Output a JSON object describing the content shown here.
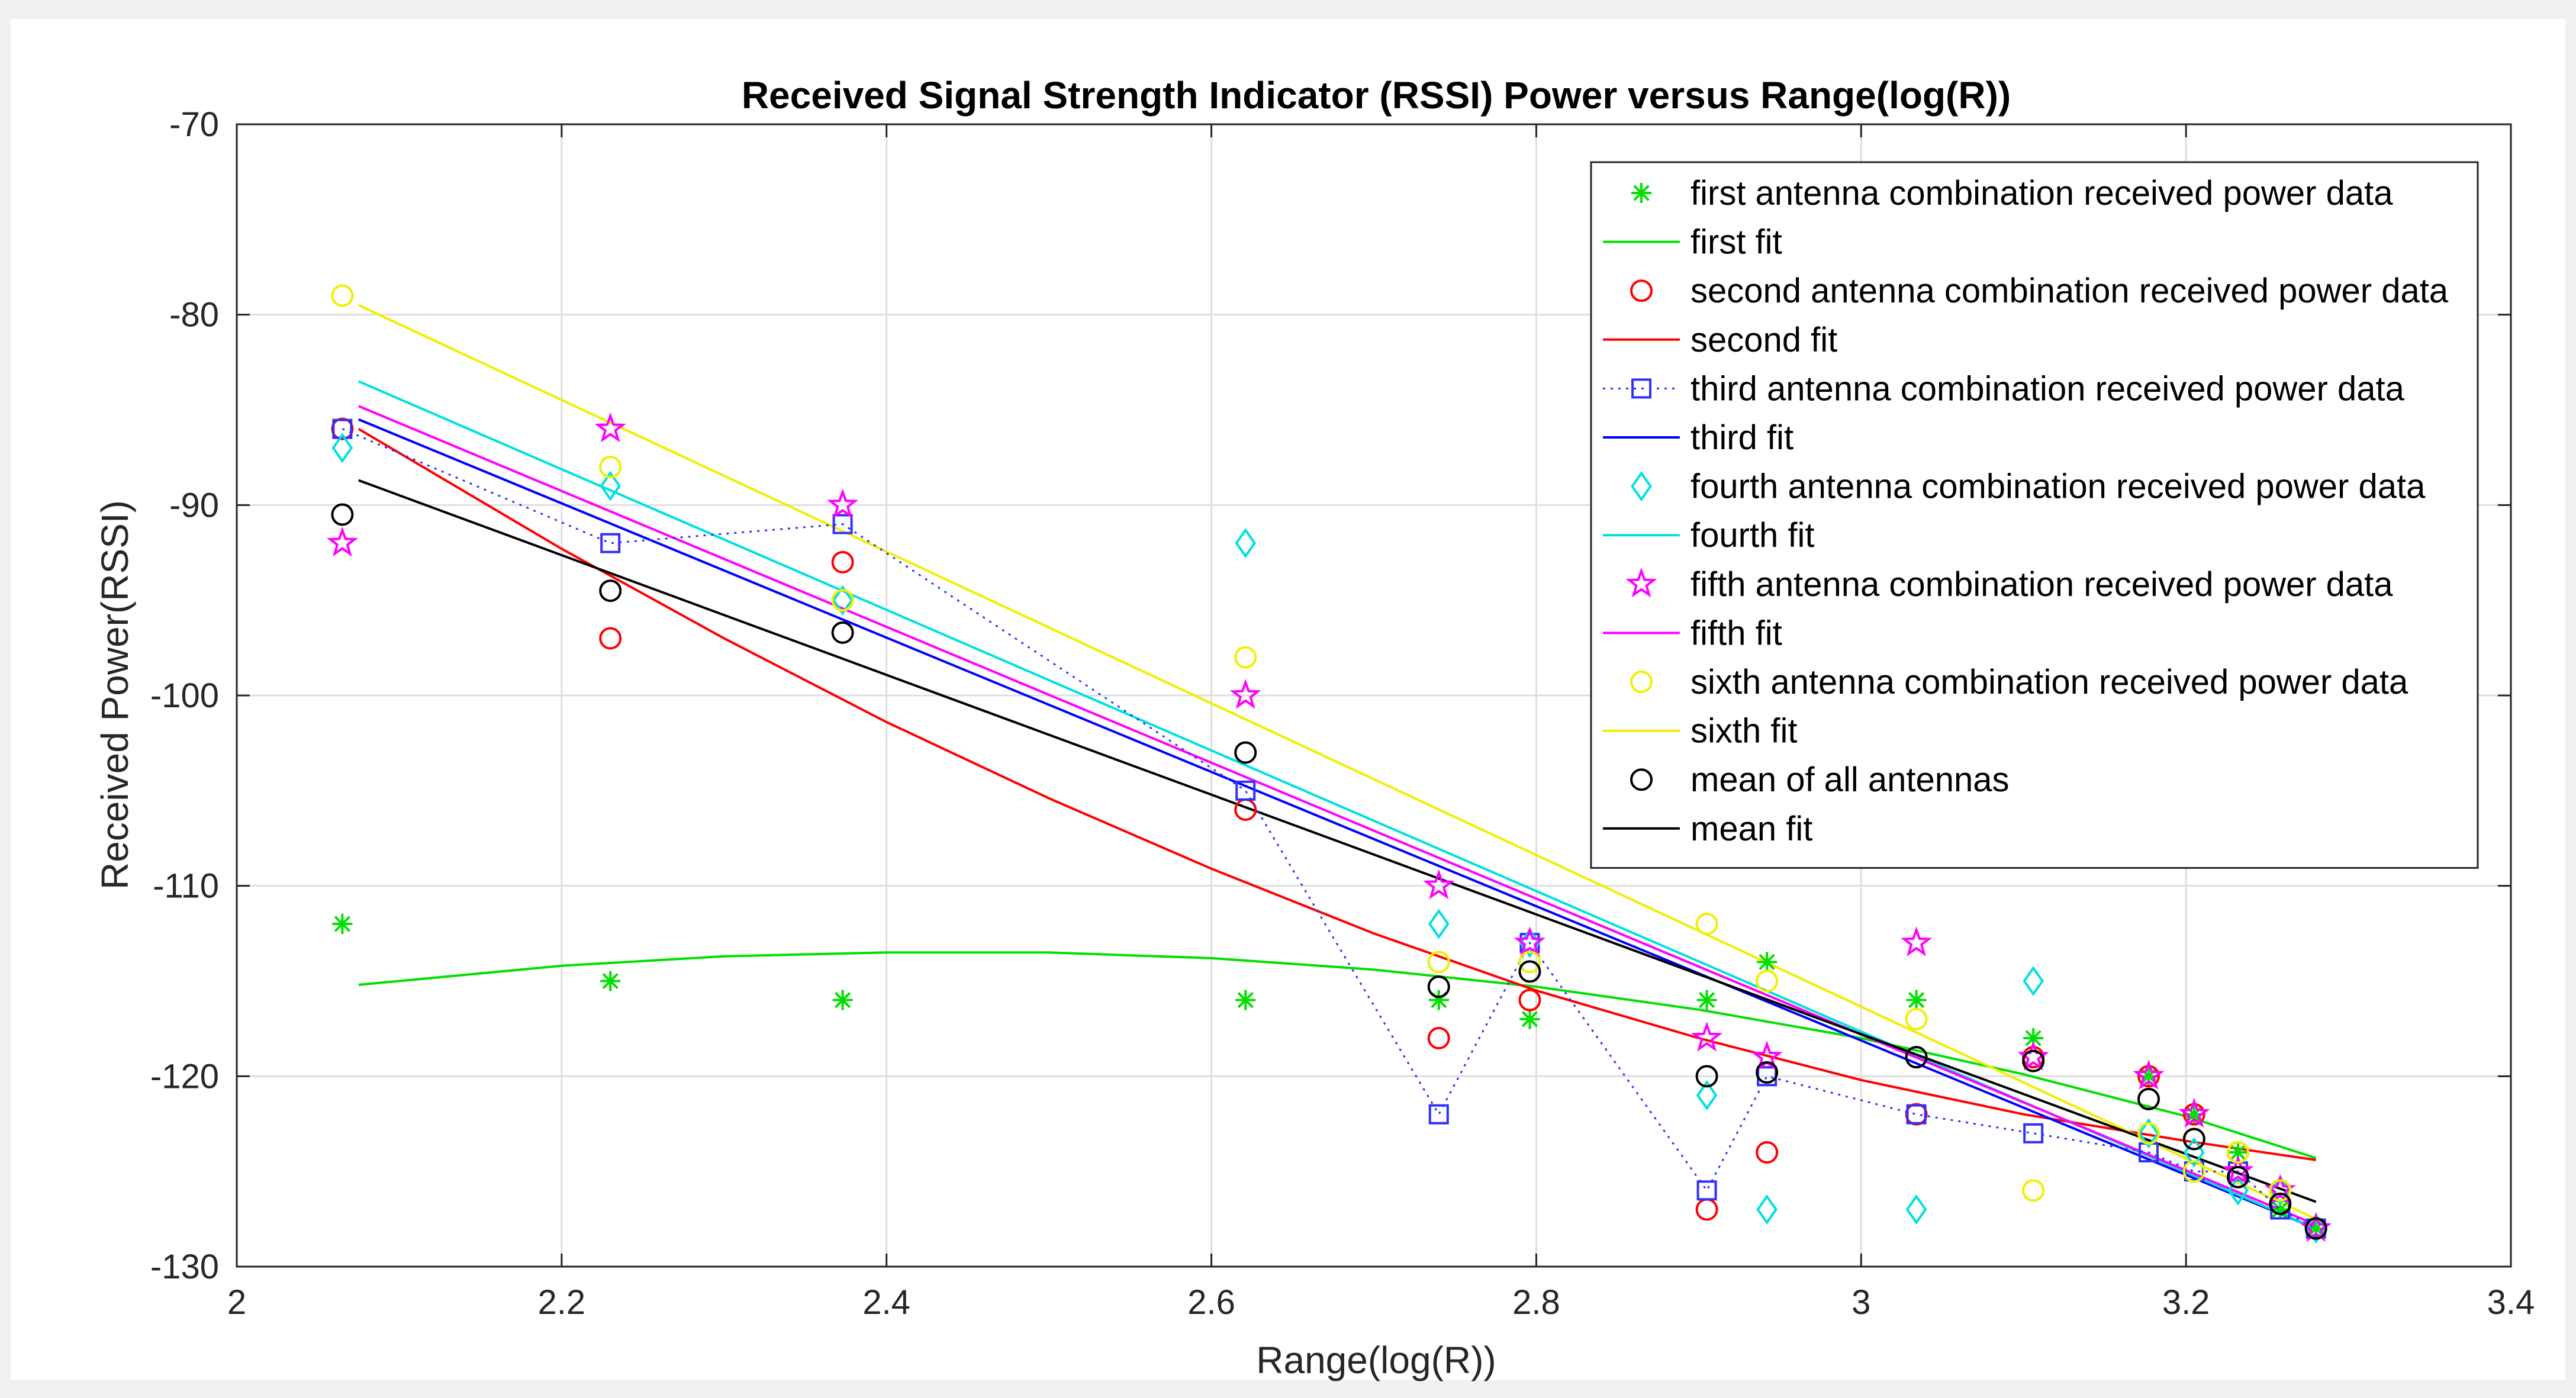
{
  "chart_data": {
    "type": "scatter",
    "title": "Received Signal Strength Indicator (RSSI) Power versus Range(log(R))",
    "xlabel": "Range(log(R))",
    "ylabel": "Received Power(RSSI)",
    "xlim": [
      2,
      3.4
    ],
    "ylim": [
      -130,
      -70
    ],
    "xticks": [
      2,
      2.2,
      2.4,
      2.6,
      2.8,
      3,
      3.2,
      3.4
    ],
    "xtick_labels": [
      "2",
      "2.2",
      "2.4",
      "2.6",
      "2.8",
      "3",
      "3.2",
      "3.4"
    ],
    "yticks": [
      -130,
      -120,
      -110,
      -100,
      -90,
      -80,
      -70
    ],
    "ytick_labels": [
      "-130",
      "-120",
      "-110",
      "-100",
      "-90",
      "-80",
      "-70"
    ],
    "grid": true,
    "legend_position": "top-right",
    "x": [
      2.065,
      2.23,
      2.373,
      2.621,
      2.74,
      2.796,
      2.905,
      2.942,
      3.034,
      3.106,
      3.177,
      3.205,
      3.232,
      3.258,
      3.28
    ],
    "series": [
      {
        "name": "first antenna combination received power data",
        "kind": "data",
        "marker": "asterisk",
        "color": "#00e000",
        "values": [
          -112,
          -115,
          -116,
          -116,
          -116,
          -117,
          -116,
          -114,
          -116,
          -118,
          -120,
          -122,
          -124,
          -127,
          -128
        ]
      },
      {
        "name": "first fit",
        "kind": "fit",
        "color": "#00e000",
        "fit_x": [
          2.075,
          2.2,
          2.3,
          2.4,
          2.5,
          2.6,
          2.7,
          2.8,
          2.9,
          3.0,
          3.1,
          3.2,
          3.28
        ],
        "fit_y": [
          -115.2,
          -114.2,
          -113.7,
          -113.5,
          -113.5,
          -113.8,
          -114.4,
          -115.3,
          -116.5,
          -118.0,
          -119.9,
          -122.1,
          -124.3
        ]
      },
      {
        "name": "second antenna combination received power data",
        "kind": "data",
        "marker": "circle",
        "color": "#ff0000",
        "values": [
          -86,
          -97,
          -93,
          -106,
          -118,
          -116,
          -127,
          -124,
          -122,
          -119,
          -120,
          -122,
          -124,
          -126,
          -128
        ]
      },
      {
        "name": "second fit",
        "kind": "fit",
        "color": "#ff0000",
        "fit_x": [
          2.075,
          2.2,
          2.3,
          2.4,
          2.5,
          2.6,
          2.7,
          2.8,
          2.9,
          3.0,
          3.1,
          3.2,
          3.28
        ],
        "fit_y": [
          -86.0,
          -92.3,
          -97.0,
          -101.4,
          -105.4,
          -109.1,
          -112.5,
          -115.5,
          -118.0,
          -120.2,
          -122.0,
          -123.4,
          -124.4
        ]
      },
      {
        "name": "third antenna combination received power data",
        "kind": "data",
        "marker": "square",
        "color": "#3030ff",
        "dotted": true,
        "values": [
          -86,
          -92,
          -91,
          -105,
          -122,
          -113,
          -126,
          -120,
          -122,
          -123,
          -124,
          -125,
          -125,
          -127,
          -128
        ]
      },
      {
        "name": "third fit",
        "kind": "fit",
        "color": "#0000ff",
        "fit_x": [
          2.075,
          3.28
        ],
        "fit_y": [
          -85.5,
          -128.0
        ]
      },
      {
        "name": "fourth antenna combination received power data",
        "kind": "data",
        "marker": "diamond",
        "color": "#00e0e0",
        "values": [
          -87,
          -89,
          -95,
          -92,
          -112,
          -113,
          -121,
          -127,
          -127,
          -115,
          -123,
          -124,
          -126,
          -126,
          -128
        ]
      },
      {
        "name": "fourth fit",
        "kind": "fit",
        "color": "#00e0e0",
        "fit_x": [
          2.075,
          3.28
        ],
        "fit_y": [
          -83.5,
          -128.0
        ]
      },
      {
        "name": "fifth antenna combination received power data",
        "kind": "data",
        "marker": "pentagram",
        "color": "#ff00ff",
        "values": [
          -92,
          -86,
          -90,
          -100,
          -110,
          -113,
          -118,
          -119,
          -113,
          -119,
          -120,
          -122,
          -125,
          -126,
          -128
        ]
      },
      {
        "name": "fifth fit",
        "kind": "fit",
        "color": "#ff00ff",
        "fit_x": [
          2.075,
          3.28
        ],
        "fit_y": [
          -84.8,
          -127.8
        ]
      },
      {
        "name": "sixth antenna combination received power data",
        "kind": "data",
        "marker": "circle",
        "color": "#f0f000",
        "values": [
          -79,
          -88,
          -95,
          -98,
          -114,
          -114,
          -112,
          -115,
          -117,
          -126,
          -123,
          -125,
          -124,
          -126,
          -128
        ]
      },
      {
        "name": "sixth fit",
        "kind": "fit",
        "color": "#f0f000",
        "fit_x": [
          2.075,
          3.28
        ],
        "fit_y": [
          -79.5,
          -127.5
        ]
      },
      {
        "name": "mean of all antennas",
        "kind": "data",
        "marker": "circle",
        "color": "#000000",
        "values": [
          -90.5,
          -94.5,
          -96.7,
          -103,
          -115.3,
          -114.5,
          -120,
          -119.8,
          -119,
          -119.2,
          -121.2,
          -123.3,
          -125.3,
          -126.7,
          -128
        ]
      },
      {
        "name": "mean fit",
        "kind": "fit",
        "color": "#000000",
        "fit_x": [
          2.075,
          3.28
        ],
        "fit_y": [
          -88.7,
          -126.6
        ]
      }
    ]
  }
}
